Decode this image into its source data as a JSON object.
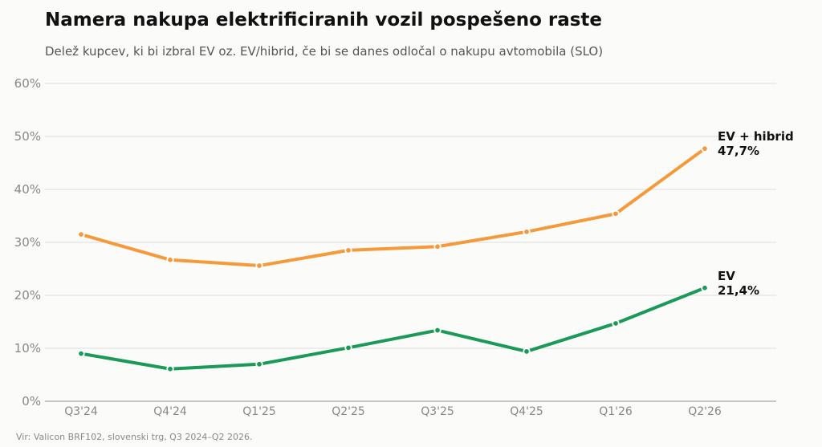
{
  "title": "Namera nakupa elektrificiranih vozil pospešeno raste",
  "subtitle": "Delež kupcev, ki bi izbral EV oz. EV/hibrid, če bi se danes odločal o nakupu avtomobila (SLO)",
  "source": "Vir: Valicon BRF102, slovenski trg, Q3 2024–Q2 2026.",
  "chart_data": {
    "type": "line",
    "title": "Namera nakupa elektrificiranih vozil pospešeno raste",
    "subtitle": "Delež kupcev, ki bi izbral EV oz. EV/hibrid, če bi se danes odločal o nakupu avtomobila (SLO)",
    "categories": [
      "Q3'24",
      "Q4'24",
      "Q1'25",
      "Q2'25",
      "Q3'25",
      "Q4'25",
      "Q1'26",
      "Q2'26"
    ],
    "y_ticks": [
      "0%",
      "10%",
      "20%",
      "30%",
      "40%",
      "50%",
      "60%"
    ],
    "ylim": [
      0,
      60
    ],
    "grid": true,
    "legend": "direct labels at line ends (right)",
    "series": [
      {
        "name": "EV + hibrid",
        "end_label": "47,7%",
        "color": "#f5993a",
        "values": [
          31.5,
          26.7,
          25.6,
          28.5,
          29.2,
          32.0,
          35.4,
          47.7
        ]
      },
      {
        "name": "EV",
        "end_label": "21,4%",
        "color": "#1a9a58",
        "values": [
          9.0,
          6.1,
          7.0,
          10.1,
          13.4,
          9.4,
          14.7,
          21.4
        ]
      }
    ]
  }
}
